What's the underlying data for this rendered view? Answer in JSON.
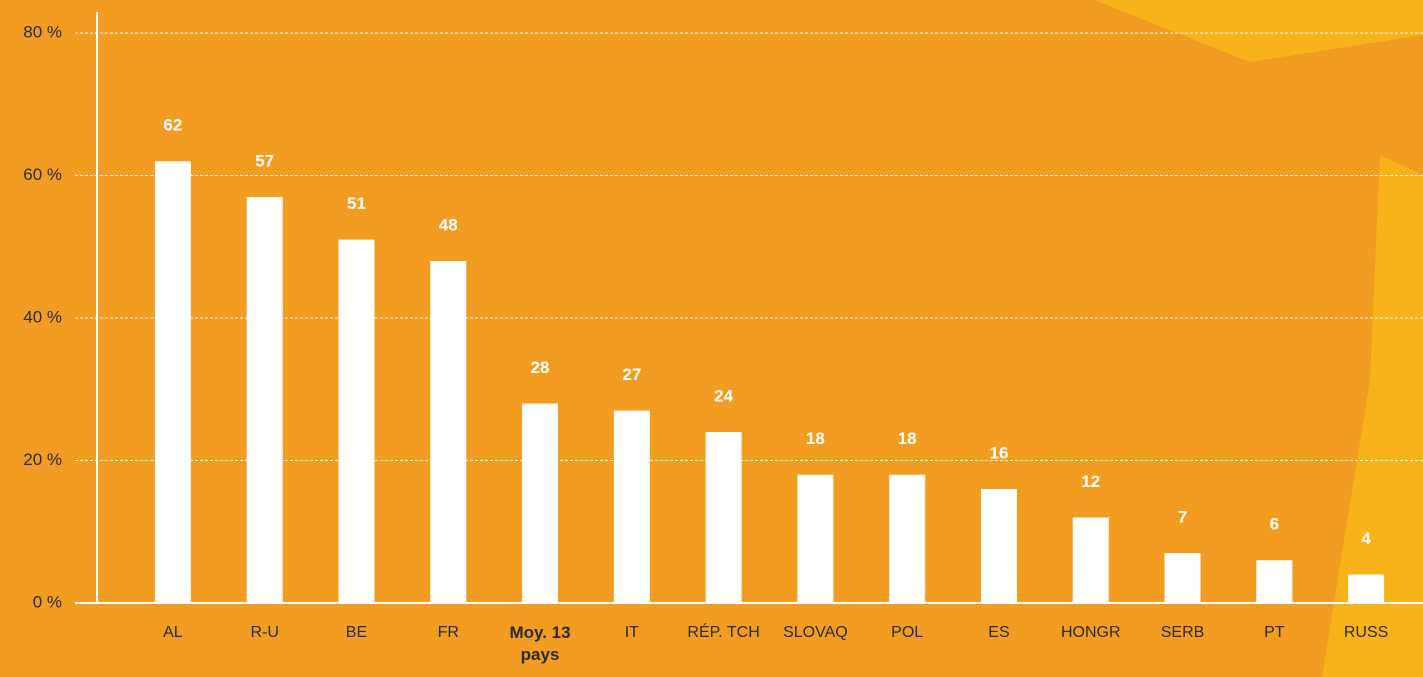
{
  "chart_data": {
    "type": "bar",
    "categories": [
      "AL",
      "R-U",
      "BE",
      "FR",
      "Moy. 13 pays",
      "IT",
      "RÉP. TCH",
      "SLOVAQ",
      "POL",
      "ES",
      "HONGR",
      "SERB",
      "PT",
      "RUSS"
    ],
    "values": [
      62,
      57,
      51,
      48,
      28,
      27,
      24,
      18,
      18,
      16,
      12,
      7,
      6,
      4
    ],
    "color": "#ffffff",
    "highlight": 4,
    "ylim": [
      0,
      80
    ],
    "yticks": [
      {
        "value": 0,
        "label": "0 %"
      },
      {
        "value": 20,
        "label": "20 %"
      },
      {
        "value": 40,
        "label": "40 %"
      },
      {
        "value": 60,
        "label": "60 %"
      },
      {
        "value": 80,
        "label": "80 %"
      }
    ],
    "grid": true
  }
}
